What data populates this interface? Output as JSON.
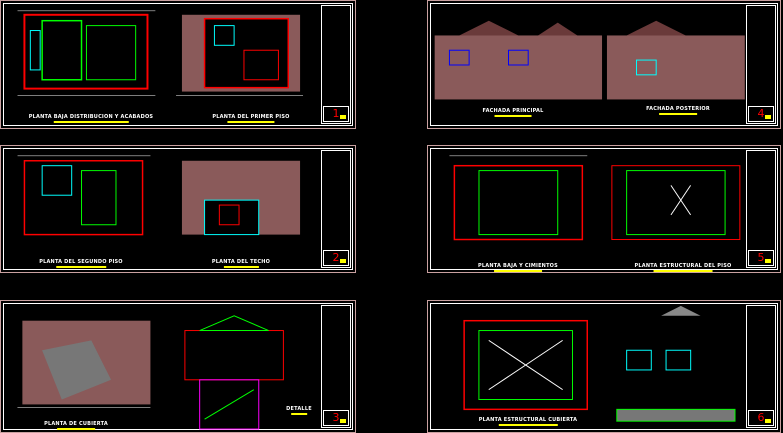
{
  "sheets": [
    {
      "number": "1",
      "titles": [
        "PLANTA BAJA DISTRIBUCION Y ACABADOS",
        "PLANTA DEL PRIMER PISO"
      ]
    },
    {
      "number": "2",
      "titles": [
        "PLANTA DEL SEGUNDO PISO",
        "PLANTA DEL TECHO"
      ]
    },
    {
      "number": "3",
      "titles": [
        "PLANTA DE CUBIERTA",
        "DETALLE"
      ]
    },
    {
      "number": "4",
      "titles": [
        "FACHADA PRINCIPAL",
        "FACHADA POSTERIOR"
      ]
    },
    {
      "number": "5",
      "titles": [
        "PLANTA BAJA Y CIMIENTOS",
        "PLANTA ESTRUCTURAL DEL PISO"
      ]
    },
    {
      "number": "6",
      "titles": [
        "PLANTA ESTRUCTURAL CUBIERTA"
      ]
    }
  ],
  "colors": {
    "border": "#c9a0a0",
    "wall_red": "#ff0000",
    "green": "#00ff00",
    "cyan": "#00ffff",
    "yellow": "#ffff00",
    "fill": "#8a5a5a"
  }
}
